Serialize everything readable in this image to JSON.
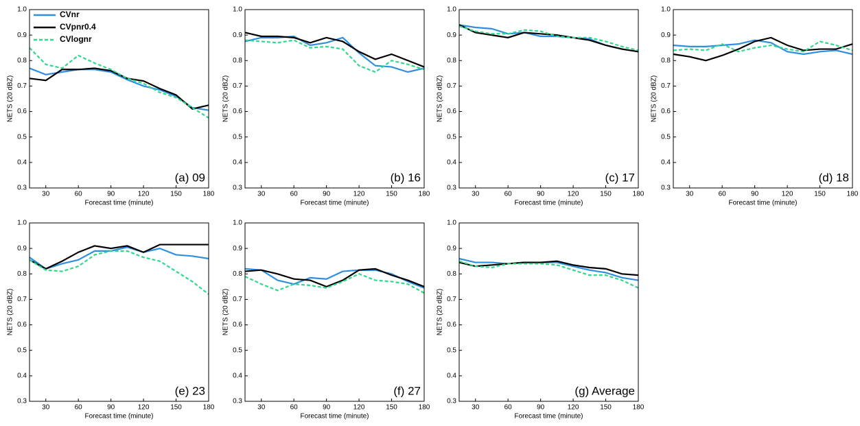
{
  "chart_data": [
    {
      "type": "line",
      "label": "(a) 09",
      "x_label": "Forecast time (minute)",
      "y_label": "NETS (20 dBZ)",
      "x": [
        15,
        30,
        45,
        60,
        75,
        90,
        105,
        120,
        135,
        150,
        165,
        180
      ],
      "xlim": [
        15,
        180
      ],
      "xticks": [
        30,
        60,
        90,
        120,
        150,
        180
      ],
      "ylim": [
        0.3,
        1
      ],
      "yticks": [
        0.3,
        0.4,
        0.5,
        0.6,
        0.7,
        0.8,
        0.9,
        {
          "value": 1,
          "label": "1.0"
        }
      ],
      "legend": "top-left",
      "series": [
        {
          "name": "CVnr",
          "color": "#2e8fe0",
          "style": "solid",
          "values": [
            0.77,
            0.745,
            0.755,
            0.765,
            0.765,
            0.755,
            0.725,
            0.7,
            0.685,
            0.66,
            0.615,
            0.605
          ]
        },
        {
          "name": "CVpnr0.4",
          "color": "#000000",
          "style": "solid",
          "values": [
            0.73,
            0.722,
            0.765,
            0.765,
            0.77,
            0.76,
            0.73,
            0.72,
            0.69,
            0.665,
            0.61,
            0.625
          ]
        },
        {
          "name": "CVlognr",
          "color": "#2fd88a",
          "style": "dashed",
          "values": [
            0.85,
            0.785,
            0.77,
            0.82,
            0.79,
            0.765,
            0.73,
            0.71,
            0.675,
            0.655,
            0.615,
            0.575
          ]
        }
      ]
    },
    {
      "type": "line",
      "label": "(b) 16",
      "x_label": "Forecast time (minute)",
      "y_label": "NETS (20 dBZ)",
      "x": [
        15,
        30,
        45,
        60,
        75,
        90,
        105,
        120,
        135,
        150,
        165,
        180
      ],
      "xlim": [
        15,
        180
      ],
      "xticks": [
        30,
        60,
        90,
        120,
        150,
        180
      ],
      "ylim": [
        0.3,
        1
      ],
      "yticks": [
        0.3,
        0.4,
        0.5,
        0.6,
        0.7,
        0.8,
        0.9,
        {
          "value": 1,
          "label": "1.0"
        }
      ],
      "series": [
        {
          "color": "#2e8fe0",
          "style": "solid",
          "values": [
            0.875,
            0.89,
            0.89,
            0.895,
            0.86,
            0.87,
            0.89,
            0.83,
            0.78,
            0.775,
            0.755,
            0.77
          ]
        },
        {
          "color": "#000000",
          "style": "solid",
          "values": [
            0.91,
            0.895,
            0.895,
            0.89,
            0.87,
            0.89,
            0.875,
            0.835,
            0.805,
            0.825,
            0.8,
            0.775
          ]
        },
        {
          "color": "#2fd88a",
          "style": "dashed",
          "values": [
            0.88,
            0.875,
            0.87,
            0.88,
            0.85,
            0.855,
            0.845,
            0.78,
            0.755,
            0.8,
            0.785,
            0.765
          ]
        }
      ]
    },
    {
      "type": "line",
      "label": "(c) 17",
      "x_label": "Forecast time (minute)",
      "y_label": "NETS (20 dBZ)",
      "x": [
        15,
        30,
        45,
        60,
        75,
        90,
        105,
        120,
        135,
        150,
        165,
        180
      ],
      "xlim": [
        15,
        180
      ],
      "xticks": [
        30,
        60,
        90,
        120,
        150,
        180
      ],
      "ylim": [
        0.3,
        1
      ],
      "yticks": [
        0.3,
        0.4,
        0.5,
        0.6,
        0.7,
        0.8,
        0.9,
        {
          "value": 1,
          "label": "1.0"
        }
      ],
      "series": [
        {
          "color": "#2e8fe0",
          "style": "solid",
          "values": [
            0.94,
            0.93,
            0.925,
            0.905,
            0.91,
            0.895,
            0.895,
            0.89,
            0.885,
            0.86,
            0.845,
            0.835
          ]
        },
        {
          "color": "#000000",
          "style": "solid",
          "values": [
            0.94,
            0.91,
            0.9,
            0.89,
            0.91,
            0.905,
            0.9,
            0.89,
            0.88,
            0.86,
            0.845,
            0.835
          ]
        },
        {
          "color": "#2fd88a",
          "style": "dashed",
          "values": [
            0.935,
            0.915,
            0.905,
            0.905,
            0.92,
            0.915,
            0.895,
            0.89,
            0.89,
            0.875,
            0.855,
            0.84
          ]
        }
      ]
    },
    {
      "type": "line",
      "label": "(d) 18",
      "x_label": "Forecast time (minute)",
      "y_label": "NETS (20 dBZ)",
      "x": [
        15,
        30,
        45,
        60,
        75,
        90,
        105,
        120,
        135,
        150,
        165,
        180
      ],
      "xlim": [
        15,
        180
      ],
      "xticks": [
        30,
        60,
        90,
        120,
        150,
        180
      ],
      "ylim": [
        0.3,
        1
      ],
      "yticks": [
        0.3,
        0.4,
        0.5,
        0.6,
        0.7,
        0.8,
        0.9,
        {
          "value": 1,
          "label": "1.0"
        }
      ],
      "series": [
        {
          "color": "#2e8fe0",
          "style": "solid",
          "values": [
            0.86,
            0.855,
            0.855,
            0.86,
            0.865,
            0.88,
            0.87,
            0.835,
            0.825,
            0.835,
            0.84,
            0.825
          ]
        },
        {
          "color": "#000000",
          "style": "solid",
          "values": [
            0.825,
            0.815,
            0.8,
            0.82,
            0.845,
            0.875,
            0.89,
            0.86,
            0.84,
            0.845,
            0.845,
            0.865
          ]
        },
        {
          "color": "#2fd88a",
          "style": "dashed",
          "values": [
            0.84,
            0.845,
            0.84,
            0.865,
            0.835,
            0.85,
            0.86,
            0.845,
            0.835,
            0.875,
            0.86,
            0.84
          ]
        }
      ]
    },
    {
      "type": "line",
      "label": "(e) 23",
      "x_label": "Forecast time (minute)",
      "y_label": "NETS (20 dBZ)",
      "x": [
        15,
        30,
        45,
        60,
        75,
        90,
        105,
        120,
        135,
        150,
        165,
        180
      ],
      "xlim": [
        15,
        180
      ],
      "xticks": [
        30,
        60,
        90,
        120,
        150,
        180
      ],
      "ylim": [
        0.3,
        1
      ],
      "yticks": [
        0.3,
        0.4,
        0.5,
        0.6,
        0.7,
        0.8,
        0.9,
        {
          "value": 1,
          "label": "1.0"
        }
      ],
      "series": [
        {
          "color": "#2e8fe0",
          "style": "solid",
          "values": [
            0.865,
            0.82,
            0.84,
            0.855,
            0.89,
            0.89,
            0.905,
            0.885,
            0.9,
            0.875,
            0.87,
            0.86
          ]
        },
        {
          "color": "#000000",
          "style": "solid",
          "values": [
            0.855,
            0.82,
            0.85,
            0.885,
            0.91,
            0.9,
            0.91,
            0.885,
            0.915,
            0.915,
            0.915,
            0.915
          ]
        },
        {
          "color": "#2fd88a",
          "style": "dashed",
          "values": [
            0.855,
            0.815,
            0.81,
            0.83,
            0.875,
            0.89,
            0.89,
            0.865,
            0.85,
            0.81,
            0.77,
            0.72
          ]
        }
      ]
    },
    {
      "type": "line",
      "label": "(f) 27",
      "x_label": "Forecast time (minute)",
      "y_label": "NETS (20 dBZ)",
      "x": [
        15,
        30,
        45,
        60,
        75,
        90,
        105,
        120,
        135,
        150,
        165,
        180
      ],
      "xlim": [
        15,
        180
      ],
      "xticks": [
        30,
        60,
        90,
        120,
        150,
        180
      ],
      "ylim": [
        0.3,
        1
      ],
      "yticks": [
        0.3,
        0.4,
        0.5,
        0.6,
        0.7,
        0.8,
        0.9,
        {
          "value": 1,
          "label": "1.0"
        }
      ],
      "series": [
        {
          "color": "#2e8fe0",
          "style": "solid",
          "values": [
            0.82,
            0.815,
            0.775,
            0.76,
            0.785,
            0.78,
            0.81,
            0.815,
            0.815,
            0.8,
            0.77,
            0.745
          ]
        },
        {
          "color": "#000000",
          "style": "solid",
          "values": [
            0.81,
            0.815,
            0.8,
            0.78,
            0.775,
            0.75,
            0.775,
            0.815,
            0.82,
            0.795,
            0.775,
            0.75
          ]
        },
        {
          "color": "#2fd88a",
          "style": "dashed",
          "values": [
            0.79,
            0.76,
            0.735,
            0.76,
            0.755,
            0.745,
            0.77,
            0.8,
            0.775,
            0.77,
            0.76,
            0.725
          ]
        }
      ]
    },
    {
      "type": "line",
      "label": "(g) Average",
      "x_label": "Forecast time (minute)",
      "y_label": "NETS (20 dBZ)",
      "x": [
        15,
        30,
        45,
        60,
        75,
        90,
        105,
        120,
        135,
        150,
        165,
        180
      ],
      "xlim": [
        15,
        180
      ],
      "xticks": [
        30,
        60,
        90,
        120,
        150,
        180
      ],
      "ylim": [
        0.3,
        1
      ],
      "yticks": [
        0.3,
        0.4,
        0.5,
        0.6,
        0.7,
        0.8,
        0.9,
        {
          "value": 1,
          "label": "1.0"
        }
      ],
      "series": [
        {
          "color": "#2e8fe0",
          "style": "solid",
          "values": [
            0.86,
            0.845,
            0.845,
            0.84,
            0.845,
            0.845,
            0.845,
            0.83,
            0.815,
            0.805,
            0.785,
            0.775
          ]
        },
        {
          "color": "#000000",
          "style": "solid",
          "values": [
            0.845,
            0.83,
            0.835,
            0.84,
            0.845,
            0.845,
            0.85,
            0.835,
            0.825,
            0.82,
            0.8,
            0.795
          ]
        },
        {
          "color": "#2fd88a",
          "style": "dashed",
          "values": [
            0.85,
            0.83,
            0.825,
            0.84,
            0.84,
            0.84,
            0.835,
            0.815,
            0.795,
            0.795,
            0.775,
            0.745
          ]
        }
      ]
    }
  ]
}
